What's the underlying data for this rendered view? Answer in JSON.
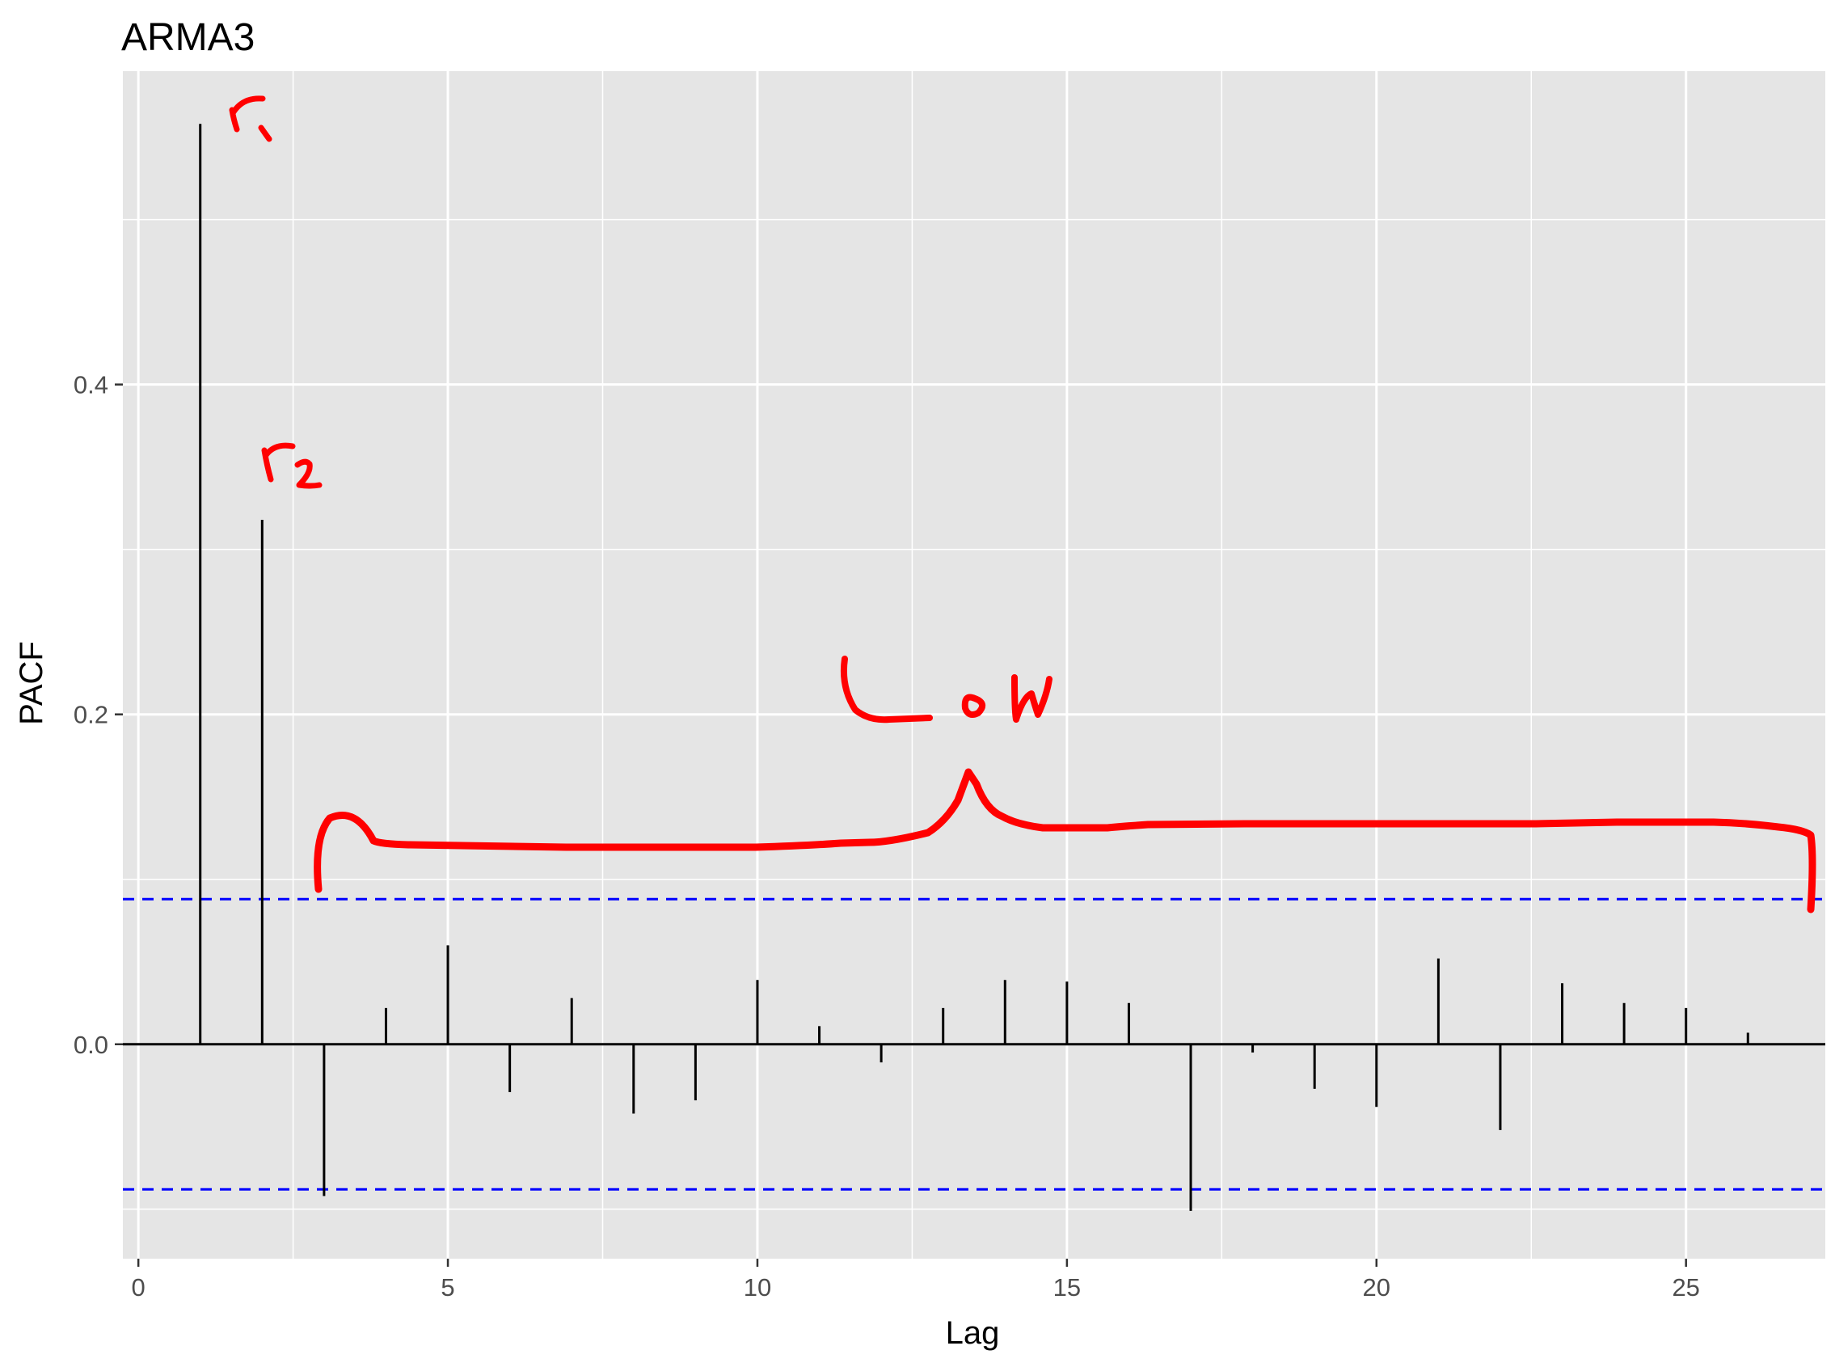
{
  "chart_data": {
    "type": "bar",
    "title": "ARMA3",
    "xlabel": "Lag",
    "ylabel": "PACF",
    "xlim": [
      -0.25,
      27.25
    ],
    "ylim": [
      -0.13,
      0.59
    ],
    "xticks": [
      0,
      5,
      10,
      15,
      20,
      25
    ],
    "xtick_labels": [
      "0",
      "5",
      "10",
      "15",
      "20",
      "25"
    ],
    "yticks": [
      0.0,
      0.2,
      0.4
    ],
    "ytick_labels": [
      "0.0",
      "0.2",
      "0.4"
    ],
    "grid": true,
    "legend": "none",
    "x": [
      1,
      2,
      3,
      4,
      5,
      6,
      7,
      8,
      9,
      10,
      11,
      12,
      13,
      14,
      15,
      16,
      17,
      18,
      19,
      20,
      21,
      22,
      23,
      24,
      25,
      26
    ],
    "values": [
      0.558,
      0.318,
      -0.092,
      0.022,
      0.06,
      -0.029,
      0.028,
      -0.042,
      -0.034,
      0.039,
      0.011,
      -0.011,
      0.022,
      0.039,
      0.038,
      0.025,
      -0.101,
      -0.005,
      -0.027,
      -0.038,
      0.052,
      -0.052,
      0.037,
      0.025,
      0.022,
      0.007
    ],
    "confidence_limits": [
      0.088,
      -0.088
    ],
    "colors": {
      "panel": "#e5e5e5",
      "grid": "#ffffff",
      "spike": "#000000",
      "ci_line": "#0000ff",
      "annotation": "#ff0000",
      "tick_text": "#4d4d4d"
    },
    "annotations": [
      {
        "text": "r1",
        "x": 1,
        "kind": "handwritten"
      },
      {
        "text": "r2",
        "x": 2,
        "kind": "handwritten"
      },
      {
        "text": "Low",
        "x": 13.5,
        "kind": "handwritten"
      }
    ]
  }
}
